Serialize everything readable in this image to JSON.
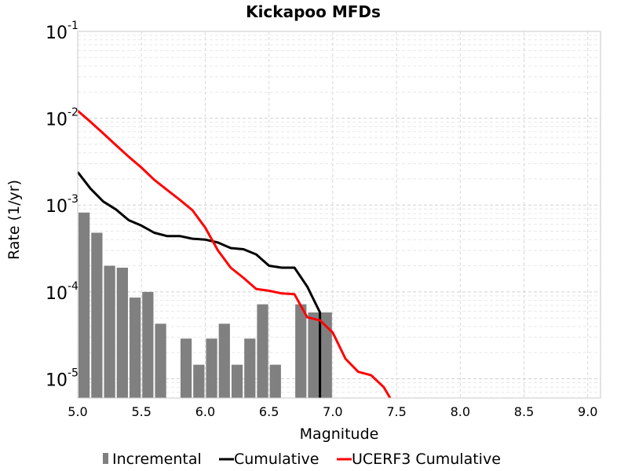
{
  "chart_data": {
    "type": "bar",
    "title": "Kickapoo MFDs",
    "xlabel": "Magnitude",
    "ylabel": "Rate (1/yr)",
    "xlim": [
      5.0,
      9.1
    ],
    "ylim": [
      6e-06,
      0.1
    ],
    "yscale": "log",
    "grid": true,
    "legend_position": "bottom",
    "x_ticks": [
      "5.0",
      "5.5",
      "6.0",
      "6.5",
      "7.0",
      "7.5",
      "8.0",
      "8.5",
      "9.0"
    ],
    "y_ticks": [
      {
        "base": "10",
        "exp": "-5"
      },
      {
        "base": "10",
        "exp": "-4"
      },
      {
        "base": "10",
        "exp": "-3"
      },
      {
        "base": "10",
        "exp": "-2"
      },
      {
        "base": "10",
        "exp": "-1"
      }
    ],
    "series": [
      {
        "name": "Incremental",
        "type": "bar",
        "color": "#808080",
        "bin_width": 0.1,
        "x": [
          5.05,
          5.15,
          5.25,
          5.35,
          5.45,
          5.55,
          5.65,
          5.75,
          5.85,
          5.95,
          6.05,
          6.15,
          6.25,
          6.35,
          6.45,
          6.55,
          6.65,
          6.75,
          6.85,
          6.95
        ],
        "y": [
          0.00082,
          0.00048,
          0.0002,
          0.00019,
          8.6e-05,
          0.0001,
          4.3e-05,
          0,
          2.9e-05,
          1.45e-05,
          2.9e-05,
          4.3e-05,
          1.45e-05,
          2.9e-05,
          7.2e-05,
          1.45e-05,
          0,
          7.2e-05,
          5.8e-05,
          5.8e-05
        ]
      },
      {
        "name": "Cumulative",
        "type": "line",
        "color": "#000000",
        "x": [
          5.0,
          5.1,
          5.2,
          5.3,
          5.4,
          5.5,
          5.6,
          5.7,
          5.8,
          5.9,
          6.0,
          6.1,
          6.2,
          6.3,
          6.4,
          6.5,
          6.6,
          6.7,
          6.8,
          6.9,
          6.9
        ],
        "y": [
          0.0024,
          0.00155,
          0.0011,
          0.00089,
          0.00067,
          0.00058,
          0.00048,
          0.00044,
          0.00044,
          0.00041,
          0.0004,
          0.00037,
          0.00032,
          0.00031,
          0.00027,
          0.0002,
          0.00019,
          0.00019,
          0.000115,
          5.8e-05,
          6e-06
        ]
      },
      {
        "name": "UCERF3 Cumulative",
        "type": "line",
        "color": "#ff0000",
        "x": [
          5.0,
          5.1,
          5.2,
          5.3,
          5.4,
          5.5,
          5.6,
          5.7,
          5.8,
          5.9,
          6.0,
          6.1,
          6.2,
          6.3,
          6.4,
          6.5,
          6.6,
          6.7,
          6.8,
          6.9,
          7.0,
          7.1,
          7.2,
          7.3,
          7.4,
          7.45
        ],
        "y": [
          0.0122,
          0.0091,
          0.0067,
          0.0049,
          0.0036,
          0.0027,
          0.00195,
          0.0015,
          0.00115,
          0.00087,
          0.00055,
          0.0003,
          0.00019,
          0.000145,
          0.000108,
          0.000103,
          9.6e-05,
          9.4e-05,
          5.1e-05,
          4.7e-05,
          3.4e-05,
          1.7e-05,
          1.2e-05,
          1.1e-05,
          8e-06,
          6e-06
        ]
      }
    ]
  }
}
